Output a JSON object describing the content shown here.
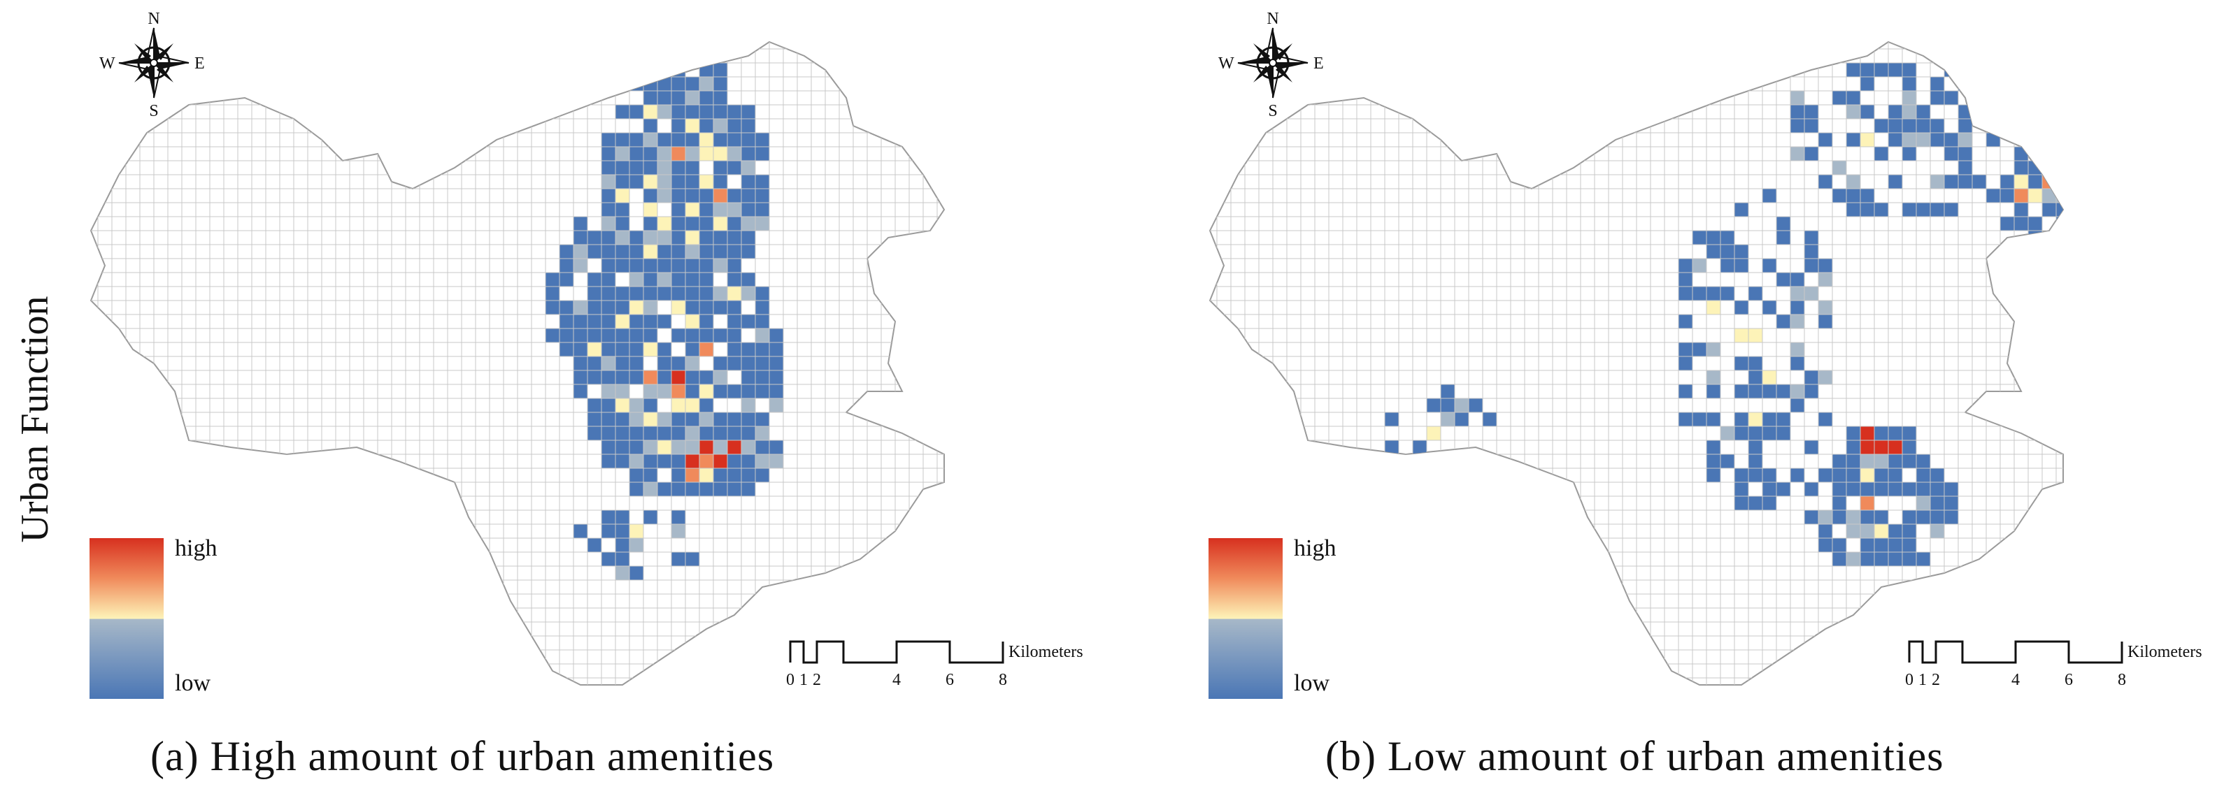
{
  "y_axis_label": "Urban Function",
  "colors": {
    "high": "#d7301f",
    "mid_high": "#f08a5b",
    "mid": "#fdf3b8",
    "mid_low": "#a7b8c8",
    "low": "#4a76b5",
    "grid": "#c8c8c8",
    "outline": "#b0b0b0"
  },
  "panels": [
    {
      "id": "a",
      "caption": "(a)  High amount of urban amenities",
      "compass": {
        "n": "N",
        "s": "S",
        "e": "E",
        "w": "W"
      },
      "legend": {
        "high": "high",
        "low": "low"
      },
      "scale": {
        "ticks": [
          "0",
          "1",
          "2",
          "4",
          "6",
          "8"
        ],
        "unit": "Kilometers"
      }
    },
    {
      "id": "b",
      "caption": "(b)  Low amount of urban amenities",
      "compass": {
        "n": "N",
        "s": "S",
        "e": "E",
        "w": "W"
      },
      "legend": {
        "high": "high",
        "low": "low"
      },
      "scale": {
        "ticks": [
          "0",
          "1",
          "2",
          "4",
          "6",
          "8"
        ],
        "unit": "Kilometers"
      }
    }
  ]
}
